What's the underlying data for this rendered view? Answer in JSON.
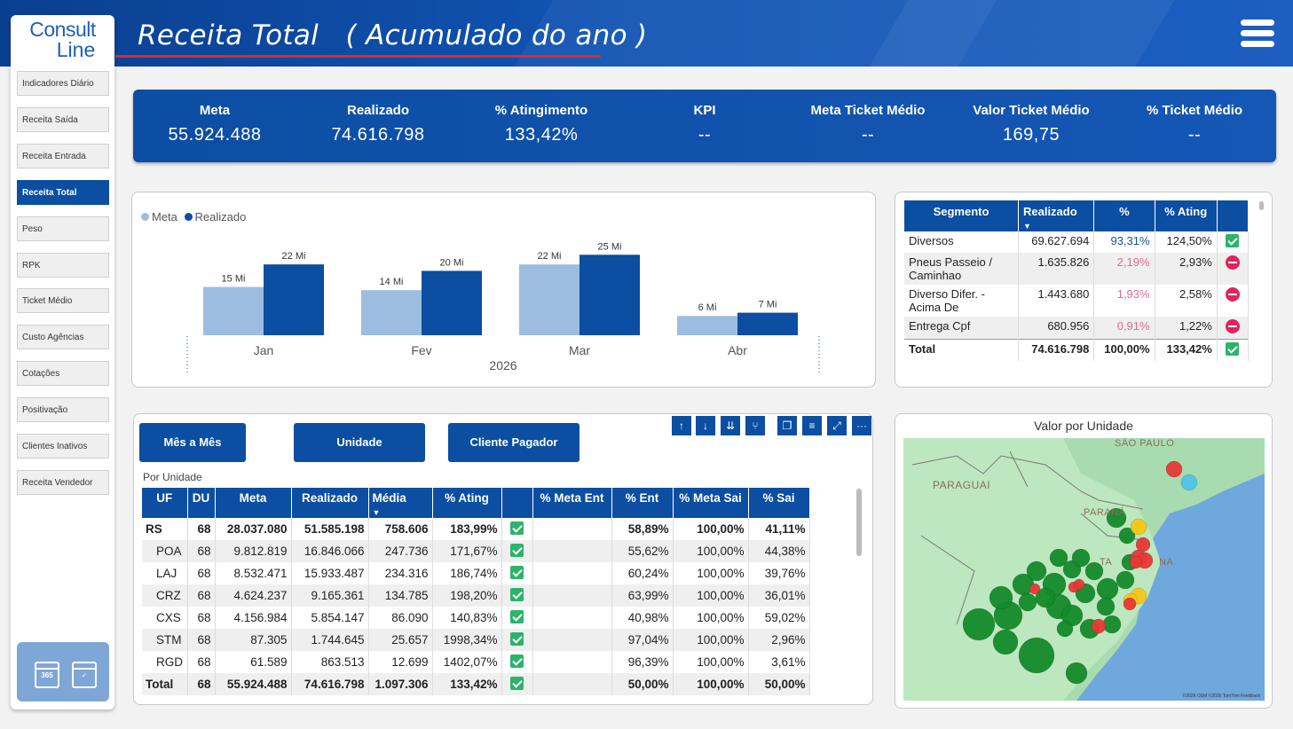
{
  "header": {
    "title": "Receita Total   ( Acumulado do ano )",
    "logo_top": "Consult",
    "logo_bottom": "Line"
  },
  "sidebar": {
    "items": [
      {
        "label": "Indicadores Diário"
      },
      {
        "label": "Receita Saída"
      },
      {
        "label": "Receita Entrada"
      },
      {
        "label": "Receita Total",
        "active": true
      },
      {
        "label": "Peso"
      },
      {
        "label": "RPK"
      },
      {
        "label": "Ticket Médio"
      },
      {
        "label": "Custo Agências"
      },
      {
        "label": "Cotações"
      },
      {
        "label": "Positivação"
      },
      {
        "label": "Clientes Inativos"
      },
      {
        "label": "Receita Vendedor"
      }
    ],
    "calendar_365": "365"
  },
  "kpis": [
    {
      "label": "Meta",
      "value": "55.924.488"
    },
    {
      "label": "Realizado",
      "value": "74.616.798"
    },
    {
      "label": "% Atingimento",
      "value": "133,42%"
    },
    {
      "label": "KPI",
      "value": "--"
    },
    {
      "label": "Meta Ticket Médio",
      "value": "--"
    },
    {
      "label": "Valor Ticket Médio",
      "value": "169,75"
    },
    {
      "label": "% Ticket Médio",
      "value": "--"
    }
  ],
  "chart_data": {
    "type": "bar",
    "categories": [
      "Jan",
      "Fev",
      "Mar",
      "Abr"
    ],
    "series": [
      {
        "name": "Meta",
        "values": [
          15,
          14,
          22,
          6
        ],
        "labels": [
          "15 Mi",
          "14 Mi",
          "22 Mi",
          "6 Mi"
        ],
        "color": "#9dbde0"
      },
      {
        "name": "Realizado",
        "values": [
          22,
          20,
          25,
          7
        ],
        "labels": [
          "22 Mi",
          "20 Mi",
          "25 Mi",
          "7 Mi"
        ],
        "color": "#0b4ea2"
      }
    ],
    "group_label": "2026",
    "ylim": [
      0,
      27
    ]
  },
  "segment_table": {
    "headers": [
      "Segmento",
      "Realizado",
      "%",
      "% Ating"
    ],
    "rows": [
      {
        "seg": "Diversos",
        "realizado": "69.627.694",
        "pct": "93,31%",
        "ating": "124,50%",
        "status": "ok"
      },
      {
        "seg": "Pneus Passeio / Caminhao",
        "realizado": "1.635.826",
        "pct": "2,19%",
        "ating": "2,93%",
        "status": "no"
      },
      {
        "seg": "Diverso Difer. - Acima De",
        "realizado": "1.443.680",
        "pct": "1,93%",
        "ating": "2,58%",
        "status": "no"
      },
      {
        "seg": "Entrega Cpf",
        "realizado": "680.956",
        "pct": "0,91%",
        "ating": "1,22%",
        "status": "no"
      }
    ],
    "total": {
      "seg": "Total",
      "realizado": "74.616.798",
      "pct": "100,00%",
      "ating": "133,42%"
    }
  },
  "tabs": {
    "mes": "Mês a Mês",
    "unidade": "Unidade",
    "cliente": "Cliente Pagador",
    "subtitle": "Por Unidade"
  },
  "toolbar": {
    "up": "↑",
    "down": "↓",
    "expand": "⇊",
    "hier": "⑂",
    "copy": "❐",
    "filter": "≡",
    "focus": "⤢",
    "more": "···"
  },
  "main_table": {
    "headers": [
      "UF",
      "DU",
      "Meta",
      "Realizado",
      "Média",
      "% Ating",
      "",
      "% Meta Ent",
      "% Ent",
      "% Meta Sai",
      "% Sai"
    ],
    "rows": [
      {
        "uf": "RS",
        "du": "68",
        "meta": "28.037.080",
        "real": "51.585.198",
        "media": "758.606",
        "ating": "183,99%",
        "meta_ent": "",
        "ent": "58,89%",
        "meta_sai": "100,00%",
        "sai": "41,11%",
        "bold": true,
        "sub": false
      },
      {
        "uf": "POA",
        "du": "68",
        "meta": "9.812.819",
        "real": "16.846.066",
        "media": "247.736",
        "ating": "171,67%",
        "meta_ent": "",
        "ent": "55,62%",
        "meta_sai": "100,00%",
        "sai": "44,38%",
        "bold": false,
        "sub": true
      },
      {
        "uf": "LAJ",
        "du": "68",
        "meta": "8.532.471",
        "real": "15.933.487",
        "media": "234.316",
        "ating": "186,74%",
        "meta_ent": "",
        "ent": "60,24%",
        "meta_sai": "100,00%",
        "sai": "39,76%",
        "bold": false,
        "sub": true
      },
      {
        "uf": "CRZ",
        "du": "68",
        "meta": "4.624.237",
        "real": "9.165.361",
        "media": "134.785",
        "ating": "198,20%",
        "meta_ent": "",
        "ent": "63,99%",
        "meta_sai": "100,00%",
        "sai": "36,01%",
        "bold": false,
        "sub": true
      },
      {
        "uf": "CXS",
        "du": "68",
        "meta": "4.156.984",
        "real": "5.854.147",
        "media": "86.090",
        "ating": "140,83%",
        "meta_ent": "",
        "ent": "40,98%",
        "meta_sai": "100,00%",
        "sai": "59,02%",
        "bold": false,
        "sub": true
      },
      {
        "uf": "STM",
        "du": "68",
        "meta": "87.305",
        "real": "1.744.645",
        "media": "25.657",
        "ating": "1998,34%",
        "meta_ent": "",
        "ent": "97,04%",
        "meta_sai": "100,00%",
        "sai": "2,96%",
        "bold": false,
        "sub": true
      },
      {
        "uf": "RGD",
        "du": "68",
        "meta": "61.589",
        "real": "863.513",
        "media": "12.699",
        "ating": "1402,07%",
        "meta_ent": "",
        "ent": "96,39%",
        "meta_sai": "100,00%",
        "sai": "3,61%",
        "bold": false,
        "sub": true
      },
      {
        "uf": "Total",
        "du": "68",
        "meta": "55.924.488",
        "real": "74.616.798",
        "media": "1.097.306",
        "ating": "133,42%",
        "meta_ent": "",
        "ent": "50,00%",
        "meta_sai": "100,00%",
        "sai": "50,00%",
        "bold": true,
        "sub": false
      }
    ]
  },
  "map": {
    "title": "Valor por Unidade",
    "labels": [
      "PARAGUAI",
      "SÃO PAULO",
      "PARANÁ",
      "TA",
      "NA"
    ],
    "credit": "©2026 OSM  ©2026 TomTom  Feedback",
    "colors": {
      "sea": "#6fa8dc",
      "land": "#a8dcb0",
      "green": "#128a2a",
      "red": "#e53935",
      "yellow": "#f5c518",
      "cyan": "#4fc3e8"
    }
  },
  "colors": {
    "brand": "#0b4ea2",
    "meta": "#9dbde0",
    "accent_red": "#d32f2f"
  }
}
